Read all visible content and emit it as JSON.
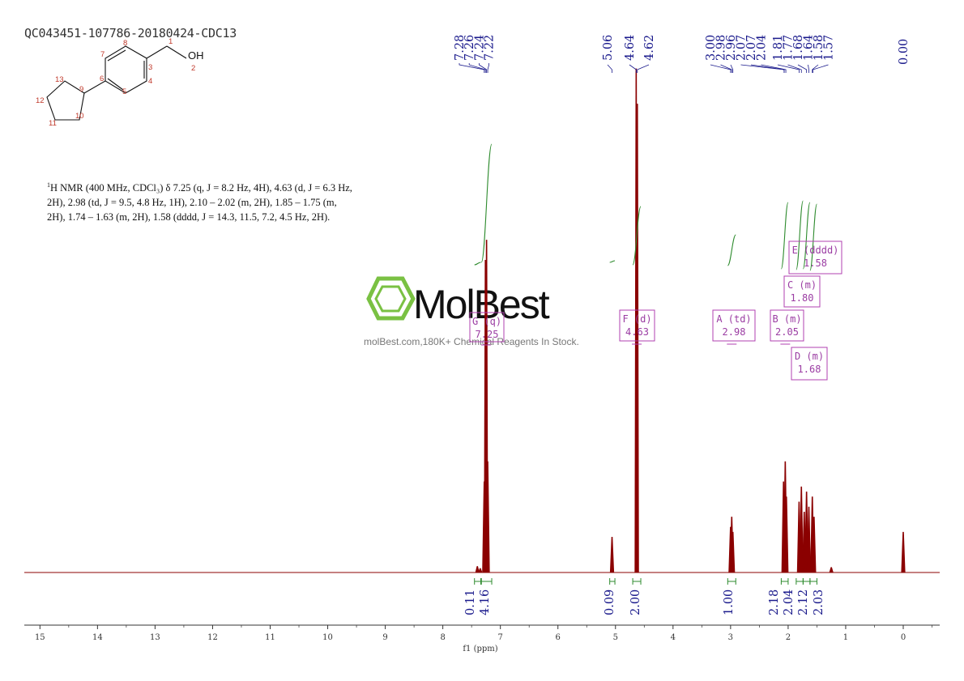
{
  "sample_id": "QC043451-107786-20180424-CDC13",
  "nmr_description": {
    "nucleus_sup": "1",
    "line": "H NMR (400 MHz, CDCl₃) δ 7.25 (q, J = 8.2 Hz, 4H), 4.63 (d, J = 6.3 Hz, 2H), 2.98 (td, J = 9.5, 4.8 Hz, 1H), 2.10 – 2.02 (m, 2H), 1.85 – 1.75 (m, 2H), 1.74 – 1.63 (m, 2H), 1.58 (dddd, J = 14.3, 11.5, 7.2, 4.5 Hz, 2H)."
  },
  "structure": {
    "atom_labels": [
      "1",
      "2",
      "3",
      "4",
      "5",
      "6",
      "7",
      "8",
      "9",
      "10",
      "11",
      "12",
      "13"
    ],
    "hydroxyl": "OH"
  },
  "watermark": {
    "brand": "MolBest",
    "tagline": "molBest.com,180K+ Chemical Reagents In Stock."
  },
  "colors": {
    "spectrum": "#8b0000",
    "integral_curve": "#2e8b2e",
    "peak_label": "#1a1a8c",
    "multiplet_box": "#b040b0",
    "logo_green": "#7ac143"
  },
  "chart_data": {
    "type": "line",
    "title": "",
    "xlabel": "f1 (ppm)",
    "ylabel": "",
    "xlim": [
      15.2,
      -0.6
    ],
    "x_reversed": true,
    "grid": false,
    "x_ticks": [
      15,
      14,
      13,
      12,
      11,
      10,
      9,
      8,
      7,
      6,
      5,
      4,
      3,
      2,
      1,
      0
    ],
    "peak_labels_left": [
      "7.28",
      "7.26",
      "7.24",
      "7.22"
    ],
    "peak_labels_mid": [
      "5.06",
      "4.64",
      "4.62"
    ],
    "peak_labels_right": [
      "3.00",
      "2.98",
      "2.96",
      "2.07",
      "2.07",
      "2.04",
      "1.81",
      "1.77",
      "1.68",
      "1.64",
      "1.58",
      "1.57"
    ],
    "peak_label_tms": "0.00",
    "peaks": [
      {
        "ppm": 7.28,
        "height": 0.18
      },
      {
        "ppm": 7.26,
        "height": 0.62
      },
      {
        "ppm": 7.24,
        "height": 0.66
      },
      {
        "ppm": 7.22,
        "height": 0.22
      },
      {
        "ppm": 7.4,
        "height": 0.012
      },
      {
        "ppm": 7.35,
        "height": 0.008
      },
      {
        "ppm": 5.06,
        "height": 0.07
      },
      {
        "ppm": 4.64,
        "height": 1.0
      },
      {
        "ppm": 4.62,
        "height": 0.93
      },
      {
        "ppm": 3.0,
        "height": 0.09
      },
      {
        "ppm": 2.98,
        "height": 0.11
      },
      {
        "ppm": 2.96,
        "height": 0.08
      },
      {
        "ppm": 2.08,
        "height": 0.18
      },
      {
        "ppm": 2.05,
        "height": 0.22
      },
      {
        "ppm": 2.03,
        "height": 0.15
      },
      {
        "ppm": 1.81,
        "height": 0.14
      },
      {
        "ppm": 1.77,
        "height": 0.17
      },
      {
        "ppm": 1.72,
        "height": 0.12
      },
      {
        "ppm": 1.68,
        "height": 0.16
      },
      {
        "ppm": 1.64,
        "height": 0.13
      },
      {
        "ppm": 1.58,
        "height": 0.15
      },
      {
        "ppm": 1.55,
        "height": 0.11
      },
      {
        "ppm": 1.25,
        "height": 0.01
      },
      {
        "ppm": 0.0,
        "height": 0.08
      }
    ],
    "multiplets": [
      {
        "label": "G (q)",
        "shift": "7.25"
      },
      {
        "label": "F (d)",
        "shift": "4.63"
      },
      {
        "label": "A (td)",
        "shift": "2.98"
      },
      {
        "label": "B (m)",
        "shift": "2.05"
      },
      {
        "label": "E (dddd)",
        "shift": "1.58"
      },
      {
        "label": "C (m)",
        "shift": "1.80"
      },
      {
        "label": "D (m)",
        "shift": "1.68"
      }
    ],
    "integrals": [
      {
        "value": "0.11",
        "from": 7.45,
        "to": 7.34
      },
      {
        "value": "4.16",
        "from": 7.33,
        "to": 7.15
      },
      {
        "value": "0.09",
        "from": 5.1,
        "to": 5.01
      },
      {
        "value": "2.00",
        "from": 4.7,
        "to": 4.56
      },
      {
        "value": "1.00",
        "from": 3.05,
        "to": 2.91
      },
      {
        "value": "2.18",
        "from": 2.12,
        "to": 2.0
      },
      {
        "value": "2.04",
        "from": 1.86,
        "to": 1.74
      },
      {
        "value": "2.12",
        "from": 1.74,
        "to": 1.62
      },
      {
        "value": "2.03",
        "from": 1.62,
        "to": 1.5
      }
    ]
  }
}
